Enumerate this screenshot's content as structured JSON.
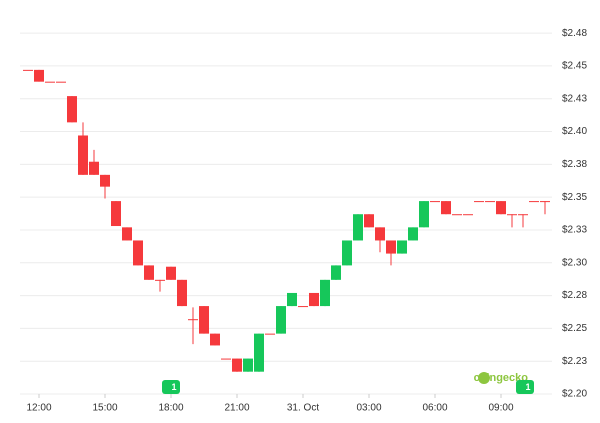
{
  "chart_data": {
    "type": "candlestick",
    "categories": [
      null,
      "12:00",
      null,
      null,
      null,
      null,
      null,
      "15:00",
      null,
      null,
      null,
      null,
      null,
      "18:00",
      null,
      null,
      null,
      null,
      null,
      "21:00",
      null,
      null,
      null,
      null,
      null,
      "31. Oct",
      null,
      null,
      null,
      null,
      null,
      "03:00",
      null,
      null,
      null,
      null,
      null,
      "06:00",
      null,
      null,
      null,
      null,
      null,
      "09:00",
      null,
      null,
      null,
      null
    ],
    "open": [
      2.447,
      2.447,
      2.438,
      2.438,
      2.427,
      2.397,
      2.377,
      2.367,
      2.347,
      2.327,
      2.317,
      2.298,
      2.287,
      2.297,
      2.287,
      2.257,
      2.267,
      2.246,
      2.227,
      2.227,
      2.217,
      2.217,
      2.246,
      2.246,
      2.267,
      2.267,
      2.277,
      2.267,
      2.287,
      2.298,
      2.317,
      2.337,
      2.327,
      2.317,
      2.307,
      2.317,
      2.327,
      2.347,
      2.347,
      2.337,
      2.337,
      2.347,
      2.347,
      2.347,
      2.337,
      2.337,
      2.347,
      2.347
    ],
    "high": [
      2.447,
      2.447,
      2.438,
      2.438,
      2.427,
      2.407,
      2.386,
      2.367,
      2.347,
      2.327,
      2.317,
      2.298,
      2.287,
      2.297,
      2.287,
      2.266,
      2.267,
      2.246,
      2.227,
      2.227,
      2.227,
      2.246,
      2.246,
      2.267,
      2.277,
      2.267,
      2.277,
      2.287,
      2.298,
      2.317,
      2.337,
      2.337,
      2.327,
      2.317,
      2.317,
      2.327,
      2.347,
      2.347,
      2.347,
      2.337,
      2.337,
      2.347,
      2.347,
      2.347,
      2.337,
      2.337,
      2.347,
      2.347
    ],
    "low": [
      2.447,
      2.438,
      2.438,
      2.438,
      2.407,
      2.367,
      2.367,
      2.349,
      2.328,
      2.317,
      2.298,
      2.287,
      2.278,
      2.287,
      2.267,
      2.238,
      2.246,
      2.237,
      2.227,
      2.217,
      2.217,
      2.217,
      2.246,
      2.246,
      2.267,
      2.267,
      2.267,
      2.267,
      2.287,
      2.298,
      2.317,
      2.327,
      2.308,
      2.298,
      2.307,
      2.317,
      2.327,
      2.347,
      2.337,
      2.337,
      2.337,
      2.347,
      2.347,
      2.337,
      2.327,
      2.327,
      2.347,
      2.337
    ],
    "close": [
      2.447,
      2.438,
      2.438,
      2.438,
      2.407,
      2.367,
      2.367,
      2.358,
      2.328,
      2.317,
      2.298,
      2.287,
      2.287,
      2.287,
      2.267,
      2.257,
      2.246,
      2.237,
      2.227,
      2.217,
      2.227,
      2.246,
      2.246,
      2.267,
      2.277,
      2.267,
      2.267,
      2.287,
      2.298,
      2.317,
      2.337,
      2.327,
      2.317,
      2.307,
      2.317,
      2.327,
      2.347,
      2.347,
      2.337,
      2.337,
      2.337,
      2.347,
      2.347,
      2.337,
      2.337,
      2.337,
      2.347,
      2.347
    ],
    "up_color": "#16c75a",
    "down_color": "#f5393c",
    "ylim": [
      2.2,
      2.485
    ],
    "yticks": [
      {
        "value": 2.2,
        "label": "$2.20"
      },
      {
        "value": 2.225,
        "label": "$2.23"
      },
      {
        "value": 2.25,
        "label": "$2.25"
      },
      {
        "value": 2.275,
        "label": "$2.28"
      },
      {
        "value": 2.3,
        "label": "$2.30"
      },
      {
        "value": 2.325,
        "label": "$2.33"
      },
      {
        "value": 2.35,
        "label": "$2.35"
      },
      {
        "value": 2.375,
        "label": "$2.38"
      },
      {
        "value": 2.4,
        "label": "$2.40"
      },
      {
        "value": 2.425,
        "label": "$2.43"
      },
      {
        "value": 2.45,
        "label": "$2.45"
      },
      {
        "value": 2.475,
        "label": "$2.48"
      }
    ],
    "grid": true,
    "markers": [
      "1",
      "1"
    ],
    "watermark": "coingecko"
  }
}
